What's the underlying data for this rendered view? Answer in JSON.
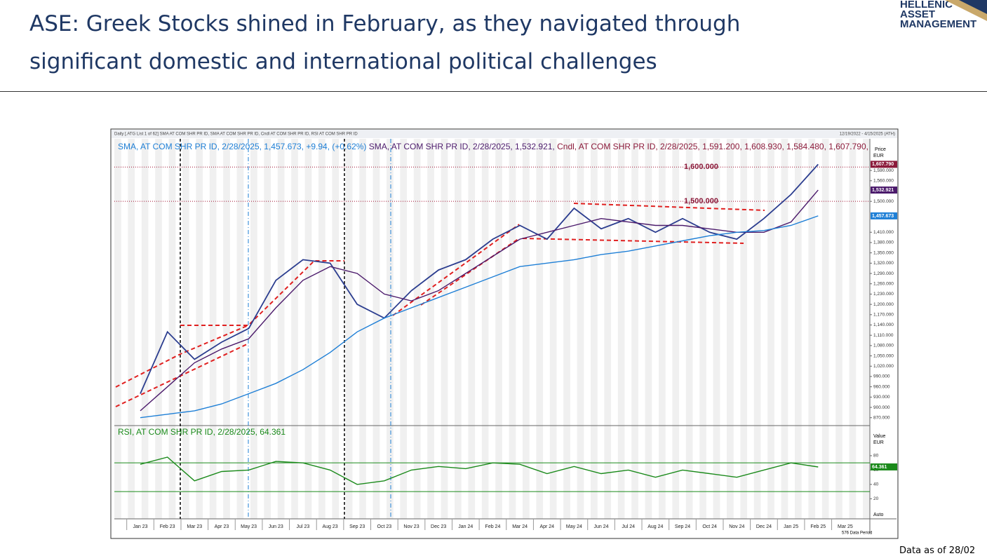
{
  "header": {
    "title": [
      "ASE: Greek Stocks shined in February, as they navigated through",
      "significant domestic and international political challenges"
    ],
    "logo": [
      "HELLENIC",
      "ASSET",
      "MANAGEMENT"
    ]
  },
  "caption": {
    "left": "Daily [.ATG List 1 of 62] SMA AT COM SHR PR ID, SMA AT COM SHR PR ID, Cndl AT COM SHR PR ID, RSI AT COM SHR PR ID",
    "right": "12/19/2022 - 4/15/2025 (ATH)",
    "status": "576 Data Period"
  },
  "footer": "Data as of 28/02",
  "chart_data": [
    {
      "type": "line",
      "categories": [
        "Jan 23",
        "Feb 23",
        "Mar 23",
        "Apr 23",
        "May 23",
        "Jun 23",
        "Jul 23",
        "Aug 23",
        "Sep 23",
        "Oct 23",
        "Nov 23",
        "Dec 23",
        "Jan 24",
        "Feb 24",
        "Mar 24",
        "Apr 24",
        "May 24",
        "Jun 24",
        "Jul 24",
        "Aug 24",
        "Sep 24",
        "Oct 24",
        "Nov 24",
        "Dec 24",
        "Jan 25",
        "Feb 25",
        "Mar 25"
      ],
      "series": [
        {
          "name": "Cndl, AT COM SHR PR ID, 2/28/2025, 1,591.200, 1,608.930, 1,584.480, 1,607.790,",
          "color": "#2b3d8f",
          "values": [
            940,
            1120,
            1040,
            1090,
            1130,
            1270,
            1330,
            1320,
            1200,
            1160,
            1240,
            1300,
            1330,
            1390,
            1430,
            1390,
            1480,
            1420,
            1450,
            1410,
            1450,
            1410,
            1390,
            1450,
            1520,
            1607.79,
            null
          ]
        },
        {
          "name": "SMA, AT COM SHR PR ID, 2/28/2025, 1,532.921,",
          "color": "#4b1a6b",
          "values": [
            890,
            960,
            1030,
            1070,
            1100,
            1190,
            1270,
            1310,
            1290,
            1230,
            1210,
            1240,
            1290,
            1340,
            1390,
            1410,
            1430,
            1450,
            1440,
            1430,
            1430,
            1420,
            1410,
            1410,
            1440,
            1532.921,
            null
          ]
        },
        {
          "name": "SMA, AT COM SHR PR ID, 2/28/2025, 1,457.673, +9.94, (+0.62%)",
          "color": "#1e7fd6",
          "values": [
            870,
            880,
            890,
            910,
            940,
            970,
            1010,
            1060,
            1120,
            1160,
            1190,
            1220,
            1250,
            1280,
            1310,
            1320,
            1330,
            1345,
            1355,
            1370,
            1385,
            1400,
            1410,
            1415,
            1430,
            1457.673,
            null
          ]
        }
      ],
      "end_labels": [
        {
          "value": 1607.79,
          "label": "1,607.790",
          "color": "#8b1a3a"
        },
        {
          "value": 1532.921,
          "label": "1,532.921",
          "color": "#4b1a6b"
        },
        {
          "value": 1457.673,
          "label": "1,457.673",
          "color": "#1e7fd6"
        }
      ],
      "hlines": [
        {
          "value": 1600,
          "label": "1,600.000"
        },
        {
          "value": 1500,
          "label": "1,500.000"
        }
      ],
      "axis_caption": [
        "Price",
        "EUR"
      ],
      "ylim": [
        847,
        1678
      ],
      "yticks": [
        {
          "value": 870,
          "label": "870.000"
        },
        {
          "value": 900,
          "label": "900.000"
        },
        {
          "value": 930,
          "label": "930.000"
        },
        {
          "value": 960,
          "label": "960.000"
        },
        {
          "value": 990,
          "label": "990.000"
        },
        {
          "value": 1020,
          "label": "1,020.000"
        },
        {
          "value": 1050,
          "label": "1,050.000"
        },
        {
          "value": 1080,
          "label": "1,080.000"
        },
        {
          "value": 1110,
          "label": "1,110.000"
        },
        {
          "value": 1140,
          "label": "1,140.000"
        },
        {
          "value": 1170,
          "label": "1,170.000"
        },
        {
          "value": 1200,
          "label": "1,200.000"
        },
        {
          "value": 1230,
          "label": "1,230.000"
        },
        {
          "value": 1260,
          "label": "1,260.000"
        },
        {
          "value": 1290,
          "label": "1,290.000"
        },
        {
          "value": 1320,
          "label": "1,320.000"
        },
        {
          "value": 1350,
          "label": "1,350.000"
        },
        {
          "value": 1380,
          "label": "1,380.000"
        },
        {
          "value": 1410,
          "label": "1,410.000"
        },
        {
          "value": 1500,
          "label": "1,500.000"
        },
        {
          "value": 1560,
          "label": "1,560.000"
        },
        {
          "value": 1590,
          "label": "1,590.000"
        }
      ]
    },
    {
      "type": "line",
      "series": [
        {
          "name": "RSI, AT COM SHR PR ID, 2/28/2025, 64.361",
          "color": "#1b8a1b",
          "values": [
            68,
            78,
            45,
            58,
            60,
            72,
            70,
            60,
            40,
            45,
            60,
            65,
            62,
            70,
            68,
            55,
            65,
            55,
            60,
            50,
            60,
            55,
            50,
            60,
            70,
            64.361,
            null
          ]
        }
      ],
      "end_labels": [
        {
          "value": 64.361,
          "label": "64.361",
          "color": "#1b8a1b"
        }
      ],
      "hlines": [
        70,
        30
      ],
      "axis_caption": [
        "Value",
        "EUR",
        "Auto"
      ],
      "ylim": [
        -8,
        121
      ],
      "yticks": [
        20,
        40,
        60,
        80
      ]
    }
  ]
}
